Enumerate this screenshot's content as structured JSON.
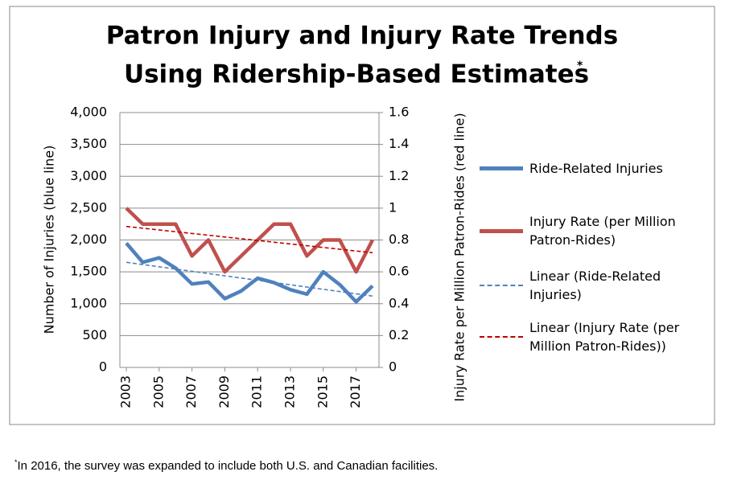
{
  "chart_data": {
    "type": "line",
    "title": [
      "Patron Injury and Injury Rate Trends",
      "Using Ridership-Based Estimates"
    ],
    "title_mark": "*",
    "y_label": "Number of Injuries (blue line)",
    "y2_label": "Injury Rate per Million Patron-Rides (red line)",
    "x": [
      2003,
      2004,
      2005,
      2006,
      2007,
      2008,
      2009,
      2010,
      2011,
      2012,
      2013,
      2014,
      2015,
      2016,
      2017,
      2018
    ],
    "xlim": [
      2003,
      2018
    ],
    "xticks": [
      2003,
      2005,
      2007,
      2009,
      2011,
      2013,
      2015,
      2017
    ],
    "ylim": [
      0,
      4000
    ],
    "yticks": [
      0,
      500,
      {
        "value": 1000,
        "label": "1,000"
      },
      {
        "value": 1500,
        "label": "1,500"
      },
      {
        "value": 2000,
        "label": "2,000"
      },
      {
        "value": 2500,
        "label": "2,500"
      },
      {
        "value": 3000,
        "label": "3,000"
      },
      {
        "value": 3500,
        "label": "3,500"
      },
      {
        "value": 4000,
        "label": "4,000"
      }
    ],
    "y2lim": [
      0,
      1.6
    ],
    "y2ticks": [
      0,
      0.2,
      0.4,
      0.6,
      0.8,
      1,
      1.2,
      1.4,
      1.6
    ],
    "grid": true,
    "series": [
      {
        "name": "Ride-Related Injuries",
        "color": "#4f81bd",
        "values": [
          1950,
          1650,
          1720,
          1560,
          1310,
          1340,
          1080,
          1200,
          1400,
          1330,
          1220,
          1150,
          1500,
          1300,
          1030,
          1280
        ]
      },
      {
        "name": "Injury Rate (per Million Patron-Rides)",
        "color": "#c0504d",
        "axis": "y2",
        "values": [
          1.0,
          0.9,
          0.9,
          0.9,
          0.7,
          0.8,
          0.6,
          0.7,
          0.8,
          0.9,
          0.9,
          0.7,
          0.8,
          0.8,
          0.6,
          0.8
        ]
      },
      {
        "name": "Linear (Ride-Related Injuries)",
        "color": "#4f81bd",
        "dashed": true,
        "x": [
          2003,
          2018
        ],
        "values": [
          1650,
          1120
        ]
      },
      {
        "name": "Linear (Injury Rate (per Million Patron-Rides))",
        "color": "#c00000",
        "dashed": true,
        "axis": "y2",
        "x": [
          2003,
          2018
        ],
        "values": [
          0.885,
          0.72
        ]
      }
    ],
    "footnote": {
      "mark": "*",
      "text": "In 2016, the survey was expanded to include both U.S. and Canadian facilities."
    }
  }
}
